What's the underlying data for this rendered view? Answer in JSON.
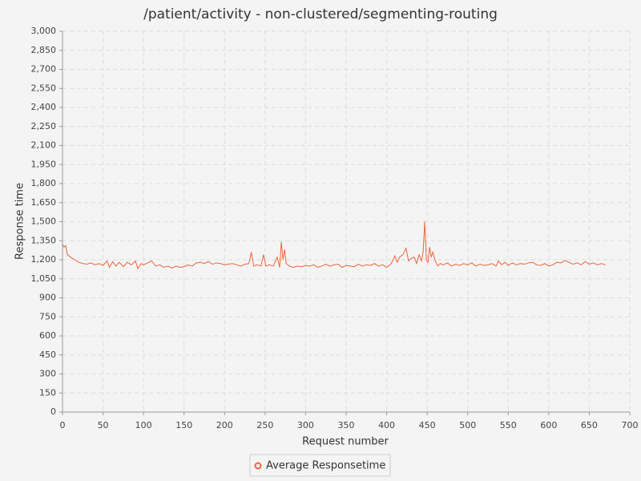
{
  "chart_data": {
    "type": "line",
    "title": "/patient/activity - non-clustered/segmenting-routing",
    "x_label": "Request number",
    "y_label": "Response time",
    "xlim": [
      0,
      700
    ],
    "xticks": [
      0,
      50,
      100,
      150,
      200,
      250,
      300,
      350,
      400,
      450,
      500,
      550,
      600,
      650,
      700
    ],
    "ylim": [
      0,
      3000
    ],
    "yticks": [
      0,
      150,
      300,
      450,
      600,
      750,
      900,
      {
        "value": 1050,
        "label": "1,050"
      },
      {
        "value": 1200,
        "label": "1,200"
      },
      {
        "value": 1350,
        "label": "1,350"
      },
      {
        "value": 1500,
        "label": "1,500"
      },
      {
        "value": 1650,
        "label": "1,650"
      },
      {
        "value": 1800,
        "label": "1,800"
      },
      {
        "value": 1950,
        "label": "1,950"
      },
      {
        "value": 2100,
        "label": "2,100"
      },
      {
        "value": 2250,
        "label": "2,250"
      },
      {
        "value": 2400,
        "label": "2,400"
      },
      {
        "value": 2550,
        "label": "2,550"
      },
      {
        "value": 2700,
        "label": "2,700"
      },
      {
        "value": 2850,
        "label": "2,850"
      },
      {
        "value": 3000,
        "label": "3,000"
      }
    ],
    "grid": true,
    "legend": "bottom",
    "x": [
      0,
      2,
      4,
      6,
      10,
      15,
      20,
      25,
      30,
      35,
      40,
      45,
      50,
      55,
      58,
      62,
      66,
      70,
      75,
      80,
      85,
      90,
      93,
      97,
      100,
      105,
      110,
      115,
      120,
      125,
      130,
      135,
      140,
      145,
      150,
      155,
      160,
      165,
      170,
      175,
      180,
      185,
      190,
      195,
      200,
      205,
      210,
      215,
      220,
      225,
      230,
      233,
      236,
      240,
      245,
      248,
      251,
      255,
      260,
      265,
      268,
      270,
      272,
      274,
      276,
      280,
      285,
      290,
      295,
      300,
      305,
      310,
      315,
      320,
      325,
      330,
      335,
      340,
      345,
      350,
      355,
      360,
      365,
      370,
      375,
      380,
      385,
      390,
      395,
      400,
      405,
      408,
      410,
      413,
      416,
      420,
      424,
      427,
      430,
      434,
      437,
      440,
      443,
      445,
      447,
      449,
      451,
      453,
      455,
      457,
      460,
      463,
      466,
      470,
      475,
      480,
      485,
      490,
      495,
      500,
      505,
      510,
      515,
      520,
      525,
      530,
      535,
      538,
      542,
      546,
      550,
      555,
      560,
      565,
      570,
      575,
      580,
      585,
      590,
      595,
      600,
      605,
      610,
      615,
      620,
      625,
      630,
      635,
      640,
      645,
      650,
      655,
      660,
      665,
      670
    ],
    "series": [
      {
        "name": "Average Responsetime",
        "color": "#e8673a",
        "values": [
          1320,
          1300,
          1310,
          1240,
          1220,
          1200,
          1180,
          1170,
          1165,
          1175,
          1160,
          1170,
          1155,
          1190,
          1140,
          1185,
          1150,
          1180,
          1145,
          1180,
          1160,
          1190,
          1130,
          1170,
          1160,
          1175,
          1190,
          1150,
          1160,
          1140,
          1150,
          1135,
          1150,
          1140,
          1145,
          1160,
          1150,
          1175,
          1180,
          1170,
          1185,
          1165,
          1175,
          1170,
          1160,
          1165,
          1170,
          1160,
          1150,
          1165,
          1170,
          1260,
          1150,
          1160,
          1150,
          1240,
          1150,
          1160,
          1150,
          1220,
          1140,
          1340,
          1200,
          1280,
          1170,
          1150,
          1140,
          1150,
          1145,
          1155,
          1150,
          1160,
          1140,
          1150,
          1165,
          1150,
          1160,
          1165,
          1140,
          1155,
          1150,
          1145,
          1165,
          1150,
          1160,
          1155,
          1170,
          1150,
          1160,
          1140,
          1165,
          1200,
          1230,
          1180,
          1220,
          1240,
          1290,
          1190,
          1210,
          1220,
          1170,
          1240,
          1190,
          1260,
          1500,
          1200,
          1180,
          1300,
          1220,
          1260,
          1190,
          1150,
          1170,
          1160,
          1175,
          1150,
          1165,
          1155,
          1170,
          1160,
          1175,
          1150,
          1165,
          1155,
          1160,
          1170,
          1150,
          1190,
          1160,
          1180,
          1155,
          1175,
          1160,
          1170,
          1165,
          1175,
          1180,
          1160,
          1155,
          1170,
          1150,
          1160,
          1180,
          1175,
          1195,
          1180,
          1165,
          1175,
          1160,
          1185,
          1165,
          1175,
          1160,
          1170,
          1160
        ]
      }
    ]
  }
}
